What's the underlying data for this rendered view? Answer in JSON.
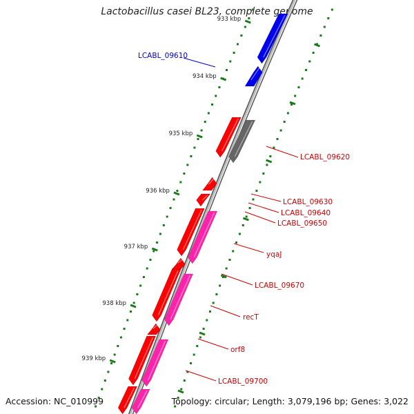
{
  "title": "Lactobacillus casei BL23, complete genome",
  "footer": {
    "accession": "Accession: NC_010999",
    "summary": "Topology: circular; Length: 3,079,196 bp; Genes: 3,022"
  },
  "colors": {
    "highlight_gene": "#0000ee",
    "forward_gene": "#ff0000",
    "reverse_gene": "#ff22aa",
    "other_feature": "#666666",
    "tick": "#1a7a1a",
    "backbone": "#888888",
    "label_blue": "#0000cc",
    "label_red": "#cc0000"
  },
  "scale_labels": [
    "933 kbp",
    "934 kbp",
    "935 kbp",
    "936 kbp",
    "937 kbp",
    "938 kbp",
    "939 kbp"
  ],
  "gene_labels": [
    "LCABL_09610",
    "LCABL_09620",
    "LCABL_09630",
    "LCABL_09640",
    "LCABL_09650",
    "yqaJ",
    "LCABL_09670",
    "recT",
    "orf8",
    "LCABL_09700"
  ]
}
